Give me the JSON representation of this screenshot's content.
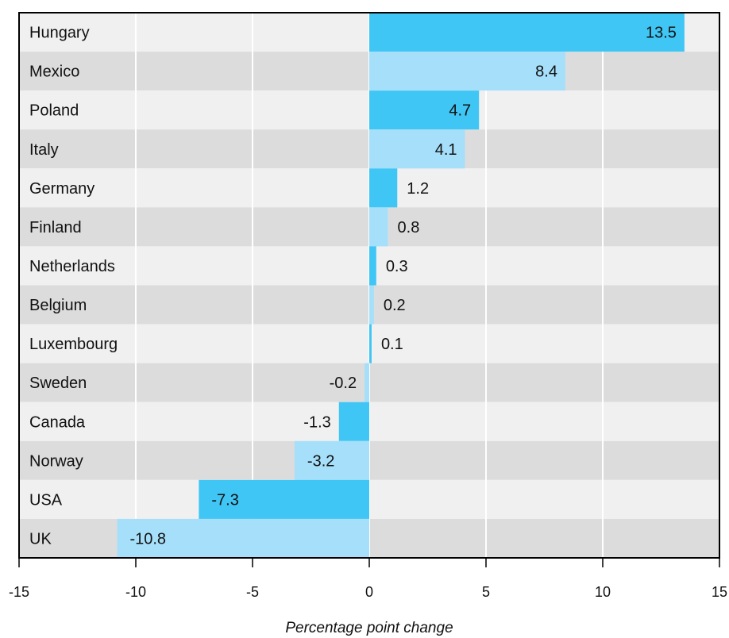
{
  "chart_data": {
    "type": "bar",
    "orientation": "horizontal",
    "categories": [
      "Hungary",
      "Mexico",
      "Poland",
      "Italy",
      "Germany",
      "Finland",
      "Netherlands",
      "Belgium",
      "Luxembourg",
      "Sweden",
      "Canada",
      "Norway",
      "USA",
      "UK"
    ],
    "values": [
      13.5,
      8.4,
      4.7,
      4.1,
      1.2,
      0.8,
      0.3,
      0.2,
      0.1,
      -0.2,
      -1.3,
      -3.2,
      -7.3,
      -10.8
    ],
    "value_labels": [
      "13.5",
      "8.4",
      "4.7",
      "4.1",
      "1.2",
      "0.8",
      "0.3",
      "0.2",
      "0.1",
      "-0.2",
      "-1.3",
      "-3.2",
      "-7.3",
      "-10.8"
    ],
    "xlabel": "Percentage point change",
    "xlim": [
      -15,
      15
    ],
    "xticks": [
      -15,
      -10,
      -5,
      0,
      5,
      10,
      15
    ],
    "xtick_labels": [
      "-15",
      "-10",
      "-5",
      "0",
      "5",
      "10",
      "15"
    ],
    "grid": true,
    "colors": {
      "bar_dark": "#40c6f4",
      "bar_light": "#a6dffa",
      "row_light": "#f0f0f0",
      "row_dark": "#dcdcdd",
      "gridline": "#ffffff",
      "frame": "#000000"
    }
  }
}
